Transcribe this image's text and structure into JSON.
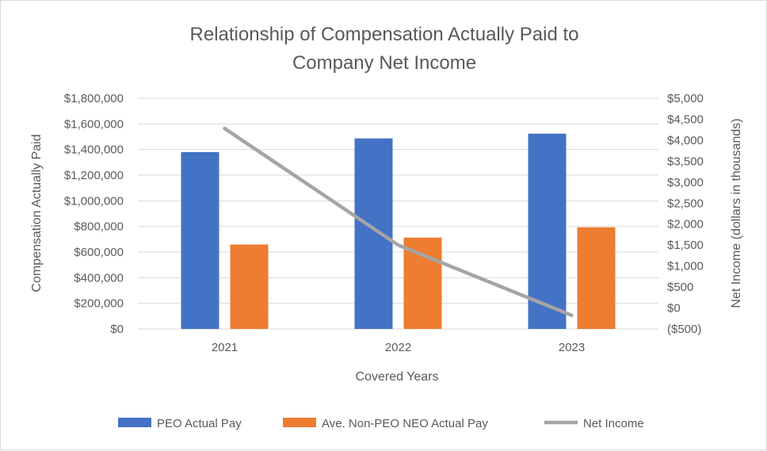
{
  "chart_data": {
    "type": "bar",
    "title_lines": [
      "Relationship of Compensation Actually Paid to",
      "Company Net Income"
    ],
    "xlabel": "Covered Years",
    "ylabel": "Compensation Actually Paid",
    "y2label": "Net Income (dollars in thousands)",
    "categories": [
      "2021",
      "2022",
      "2023"
    ],
    "ylim": [
      0,
      1800000
    ],
    "y2lim": [
      -500,
      5000
    ],
    "yticks": [
      "$0",
      "$200,000",
      "$400,000",
      "$600,000",
      "$800,000",
      "$1,000,000",
      "$1,200,000",
      "$1,400,000",
      "$1,600,000",
      "$1,800,000"
    ],
    "y2ticks": [
      "($500)",
      "$0",
      "$500",
      "$1,000",
      "$1,500",
      "$2,000",
      "$2,500",
      "$3,000",
      "$3,500",
      "$4,000",
      "$4,500",
      "$5,000"
    ],
    "grid": true,
    "legend_position": "bottom",
    "series": [
      {
        "name": "PEO Actual Pay",
        "type": "bar",
        "axis": "left",
        "color": "#4472C4",
        "values": [
          1380000,
          1487000,
          1524000
        ]
      },
      {
        "name": "Ave. Non-PEO NEO Actual Pay",
        "type": "bar",
        "axis": "left",
        "color": "#ED7D31",
        "values": [
          659000,
          713000,
          793000
        ]
      },
      {
        "name": "Net Income",
        "type": "line",
        "axis": "right",
        "color": "#A5A5A5",
        "values": [
          4280,
          1500,
          -175
        ]
      }
    ]
  }
}
